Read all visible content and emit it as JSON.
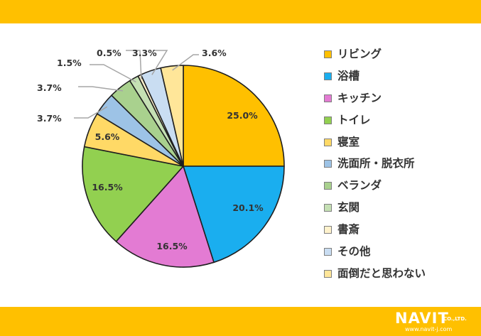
{
  "chart_data": {
    "type": "pie",
    "start_angle": "12 o'clock",
    "direction": "clockwise",
    "legend_position": "right",
    "slices": [
      {
        "label": "リビング",
        "value": 25.0,
        "display": "25.0%",
        "color": "#FFC000"
      },
      {
        "label": "浴槽",
        "value": 20.1,
        "display": "20.1%",
        "color": "#1AAEEF"
      },
      {
        "label": "キッチン",
        "value": 16.5,
        "display": "16.5%",
        "color": "#E37BD3"
      },
      {
        "label": "トイレ",
        "value": 16.5,
        "display": "16.5%",
        "color": "#92D050"
      },
      {
        "label": "寝室",
        "value": 5.6,
        "display": "5.6%",
        "color": "#FFD966"
      },
      {
        "label": "洗面所・脱衣所",
        "value": 3.7,
        "display": "3.7%",
        "color": "#9DC3E6"
      },
      {
        "label": "ベランダ",
        "value": 3.7,
        "display": "3.7%",
        "color": "#A9D18E"
      },
      {
        "label": "玄関",
        "value": 1.5,
        "display": "1.5%",
        "color": "#C5E0B4"
      },
      {
        "label": "書斎",
        "value": 0.5,
        "display": "0.5%",
        "color": "#FFF2CC"
      },
      {
        "label": "その他",
        "value": 3.3,
        "display": "3.3%",
        "color": "#C9DDF2"
      },
      {
        "label": "面倒だと思わない",
        "value": 3.6,
        "display": "3.6%",
        "color": "#FFE699"
      }
    ]
  },
  "branding": {
    "logo_text": "NAVIT",
    "logo_suffix": "CO.,LTD.",
    "url": "www.navit-j.com"
  }
}
